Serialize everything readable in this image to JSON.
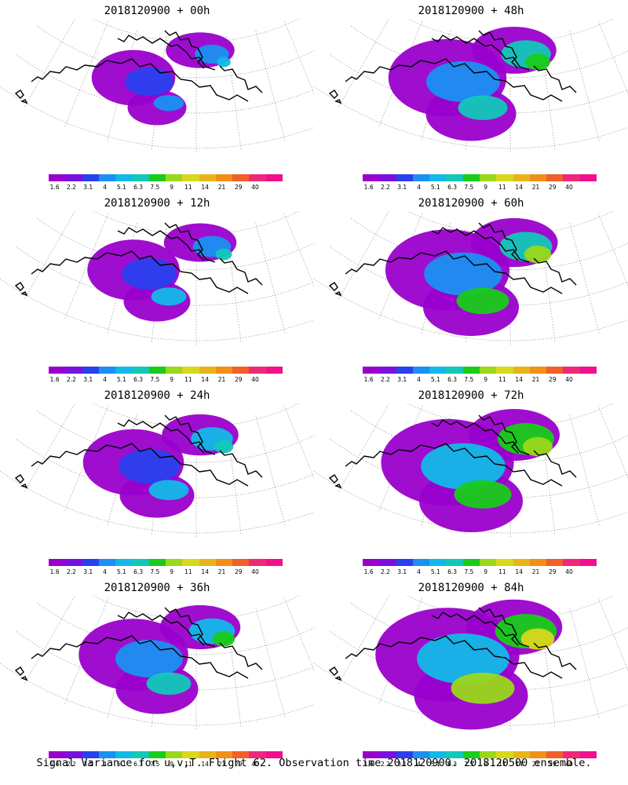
{
  "panels": [
    {
      "title": "2018120900 + 00h",
      "intensity": 0.15
    },
    {
      "title": "2018120900 + 48h",
      "intensity": 0.55
    },
    {
      "title": "2018120900 + 12h",
      "intensity": 0.25
    },
    {
      "title": "2018120900 + 60h",
      "intensity": 0.62
    },
    {
      "title": "2018120900 + 24h",
      "intensity": 0.35
    },
    {
      "title": "2018120900 + 72h",
      "intensity": 0.72
    },
    {
      "title": "2018120900 + 36h",
      "intensity": 0.45
    },
    {
      "title": "2018120900 + 84h",
      "intensity": 0.85
    }
  ],
  "legend": {
    "ticks": [
      "1.6",
      "2.2",
      "3.1",
      "4",
      "5.1",
      "6.3",
      "7.5",
      "9",
      "11",
      "14",
      "21",
      "29",
      "40"
    ],
    "colors": [
      "#9a00cc",
      "#7a10dd",
      "#2a40ee",
      "#1a90f0",
      "#12b8e8",
      "#12c8b8",
      "#18cc18",
      "#9ad81a",
      "#d8d81c",
      "#e8b418",
      "#f09018",
      "#f06028",
      "#f02878",
      "#f0108c"
    ]
  },
  "footer": "Signal Variance for u,v,T. Flight 62. Observation time 2018120900. 2018120500 ensemble."
}
